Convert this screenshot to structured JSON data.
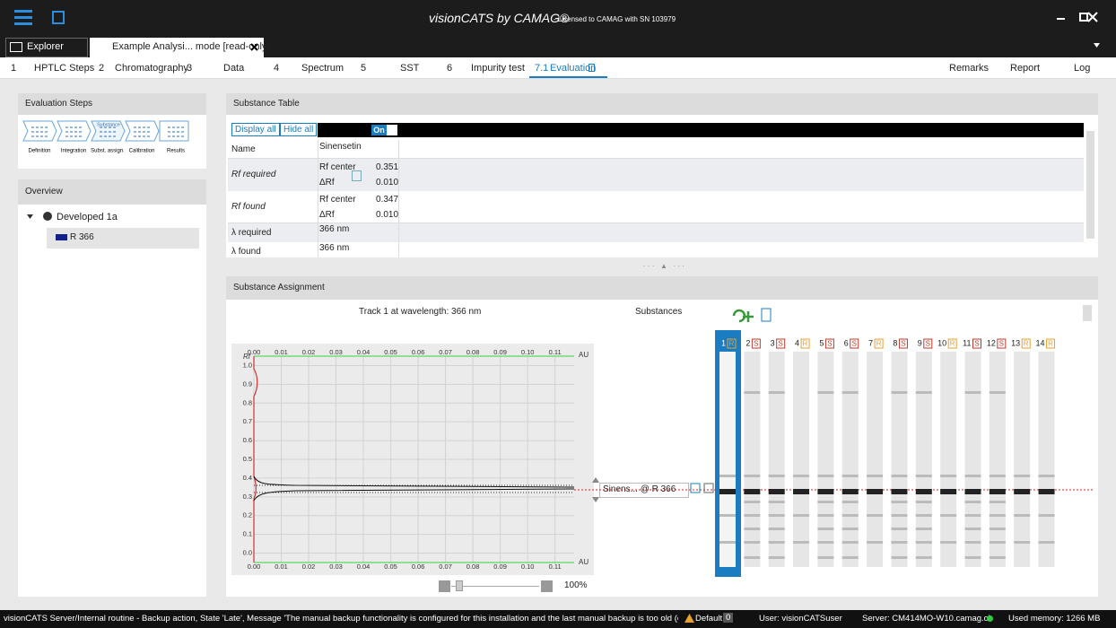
{
  "title_bar": {
    "app": "visionCATS by CAMAG®",
    "license": "- Licensed to CAMAG with SN 103979"
  },
  "tabs": [
    "Explorer",
    "Example Analysi... mode [read-only]"
  ],
  "steps": [
    {
      "num": "1",
      "label": "HPTLC Steps"
    },
    {
      "num": "2",
      "label": "Chromatography"
    },
    {
      "num": "3",
      "label": "Data"
    },
    {
      "num": "4",
      "label": "Spectrum"
    },
    {
      "num": "5",
      "label": "SST"
    },
    {
      "num": "6",
      "label": "Impurity test"
    },
    {
      "num": "7.1",
      "label": "Evaluation",
      "active": true
    }
  ],
  "steps_right": [
    "Remarks",
    "Report",
    "Log"
  ],
  "evaluation_steps": {
    "title": "Evaluation Steps",
    "highlight": "Substance",
    "items": [
      "Definition",
      "Integration",
      "Subst. assign.",
      "Calibration",
      "Results"
    ]
  },
  "overview": {
    "title": "Overview",
    "tree": [
      "Developed 1a",
      "R 366"
    ]
  },
  "substance_table": {
    "title": "Substance Table",
    "buttons": [
      "Display all",
      "Hide all"
    ],
    "toggle": "On",
    "name_label": "Name",
    "name": "Sinensetin",
    "rf_required": {
      "label": "Rf required",
      "center_label": "Rf center",
      "center": "0.351",
      "delta_label": "ΔRf",
      "delta": "0.010"
    },
    "rf_found": {
      "label": "Rf found",
      "center_label": "Rf center",
      "center": "0.347",
      "delta_label": "ΔRf",
      "delta": "0.010"
    },
    "lambda_required": {
      "label": "λ required",
      "value": "366 nm"
    },
    "lambda_found": {
      "label": "λ found",
      "value": "366 nm"
    }
  },
  "assignment": {
    "title": "Substance Assignment",
    "track_title": "Track 1 at wavelength: 366 nm",
    "substances_label": "Substances",
    "selector": "Sinens... @  R 366",
    "zoom": "100%",
    "chart": {
      "y_label": "Rf",
      "x_unit": "AU",
      "xlim": [
        0,
        0.117
      ],
      "ylim": [
        -0.05,
        1.05
      ],
      "grid": true,
      "xticks": [
        {
          "value": 0,
          "label": "0.00"
        },
        0.01,
        0.02,
        0.03,
        0.04,
        0.05,
        0.06,
        0.07,
        0.08,
        0.09,
        {
          "value": 0.1,
          "label": "0.10"
        },
        0.11
      ],
      "yticks": [
        {
          "value": 0,
          "label": "0.0"
        },
        0.1,
        0.2,
        0.3,
        0.4,
        0.5,
        0.6,
        0.7,
        0.8,
        0.9,
        {
          "value": 1,
          "label": "1.0"
        }
      ]
    },
    "kind_colors": {
      "R": "#e8a030",
      "S": "#c0392b"
    },
    "tracks": [
      {
        "label": "1",
        "kind": "R"
      },
      {
        "label": "2",
        "kind": "S"
      },
      {
        "label": "3",
        "kind": "S"
      },
      {
        "label": "4",
        "kind": "R"
      },
      {
        "label": "5",
        "kind": "S"
      },
      {
        "label": "6",
        "kind": "S"
      },
      {
        "label": "7",
        "kind": "R"
      },
      {
        "label": "8",
        "kind": "S"
      },
      {
        "label": "9",
        "kind": "S"
      },
      {
        "label": "10",
        "kind": "R"
      },
      {
        "label": "11",
        "kind": "S"
      },
      {
        "label": "12",
        "kind": "S"
      },
      {
        "label": "13",
        "kind": "R"
      },
      {
        "label": "14",
        "kind": "R"
      }
    ]
  },
  "status": {
    "message": "visionCATS Server/Internal routine - Backup action, State 'Late', Message 'The manual backup functionality is configured for this installation and the last manual backup is too old (or ha",
    "default": "Default:",
    "default_count": 0,
    "user": "User: visionCATSuser",
    "server": "Server: CM414MO-W10.camag.ch",
    "memory": "Used memory: 1266 MB"
  }
}
